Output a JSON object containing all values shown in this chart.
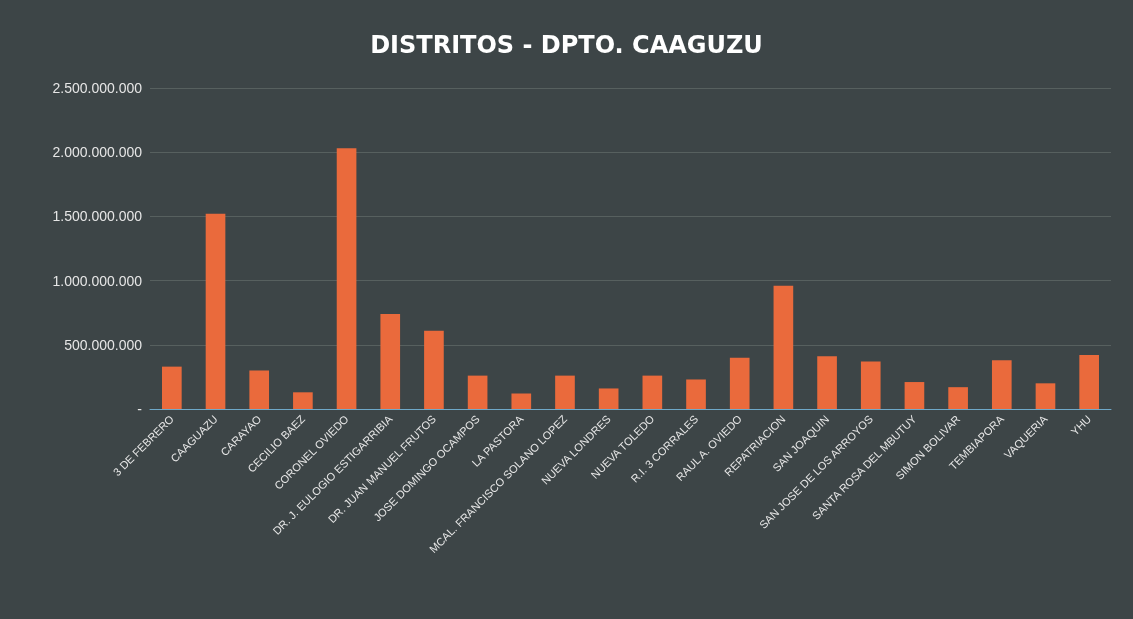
{
  "chart_data": {
    "type": "bar",
    "title": "DISTRITOS - DPTO. CAAGUZU",
    "categories": [
      "3 DE FEBRERO",
      "CAAGUAZU",
      "CARAYAO",
      "CECILIO BAEZ",
      "CORONEL OVIEDO",
      "DR. J. EULOGIO ESTIGARRIBIA",
      "DR. JUAN MANUEL FRUTOS",
      "JOSE DOMINGO OCAMPOS",
      "LA PASTORA",
      "MCAL. FRANCISCO SOLANO LOPEZ",
      "NUEVA LONDRES",
      "NUEVA TOLEDO",
      "R.I. 3 CORRALES",
      "RAUL A. OVIEDO",
      "REPATRIACION",
      "SAN JOAQUIN",
      "SAN JOSE DE LOS ARROYOS",
      "SANTA ROSA DEL MBUTUY",
      "SIMON BOLIVAR",
      "TEMBIAPORA",
      "VAQUERIA",
      "YHU"
    ],
    "values": [
      330000000,
      1520000000,
      300000000,
      130000000,
      2030000000,
      740000000,
      610000000,
      260000000,
      120000000,
      260000000,
      160000000,
      260000000,
      230000000,
      400000000,
      960000000,
      410000000,
      370000000,
      210000000,
      170000000,
      380000000,
      200000000,
      420000000
    ],
    "color": "#ea6a3c",
    "ylim": [
      0,
      2500000000
    ],
    "yticks": [
      {
        "value": 0,
        "label": "-"
      },
      {
        "value": 500000000,
        "label": "500.000.000"
      },
      {
        "value": 1000000000,
        "label": "1.000.000.000"
      },
      {
        "value": 1500000000,
        "label": "1.500.000.000"
      },
      {
        "value": 2000000000,
        "label": "2.000.000.000"
      },
      {
        "value": 2500000000,
        "label": "2.500.000.000"
      }
    ],
    "grid": true
  }
}
